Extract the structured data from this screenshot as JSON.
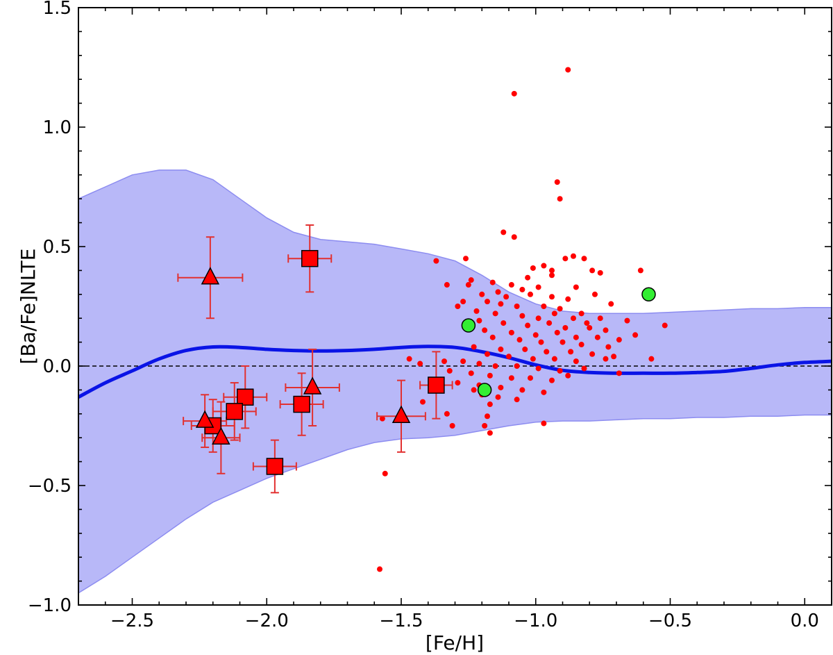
{
  "chart_data": {
    "type": "scatter",
    "title": "",
    "xlabel": "[Fe/H]",
    "ylabel": "[Ba/Fe]NLTE",
    "xlim": [
      -2.7,
      0.1
    ],
    "ylim": [
      -1.0,
      1.5
    ],
    "x_ticks": [
      -2.5,
      -2.0,
      -1.5,
      -1.0,
      -0.5,
      0.0
    ],
    "x_tick_labels": [
      "−2.5",
      "−2.0",
      "−1.5",
      "−1.0",
      "−0.5",
      "0.0"
    ],
    "y_ticks": [
      -1.0,
      -0.5,
      0.0,
      0.5,
      1.0,
      1.5
    ],
    "y_tick_labels": [
      "−1.0",
      "−0.5",
      "0.0",
      "0.5",
      "1.0",
      "1.5"
    ],
    "colors": {
      "band_fill": "#b8b8f8",
      "band_edge": "#8c8cf0",
      "mean_line": "#0a14e6",
      "marker_red": "#ff0000",
      "error_bar": "#e23030",
      "green_marker": "#33ee33"
    },
    "reference_line_y": 0.0,
    "band": {
      "name": "model spread",
      "x": [
        -2.7,
        -2.6,
        -2.5,
        -2.4,
        -2.3,
        -2.2,
        -2.1,
        -2.0,
        -1.9,
        -1.8,
        -1.7,
        -1.6,
        -1.5,
        -1.4,
        -1.3,
        -1.2,
        -1.1,
        -1.0,
        -0.9,
        -0.8,
        -0.7,
        -0.6,
        -0.5,
        -0.4,
        -0.3,
        -0.2,
        -0.1,
        0.0,
        0.1
      ],
      "upper": [
        0.7,
        0.75,
        0.8,
        0.82,
        0.82,
        0.78,
        0.7,
        0.62,
        0.56,
        0.53,
        0.52,
        0.51,
        0.49,
        0.47,
        0.44,
        0.38,
        0.31,
        0.26,
        0.23,
        0.22,
        0.22,
        0.22,
        0.225,
        0.23,
        0.235,
        0.24,
        0.24,
        0.245,
        0.245
      ],
      "lower": [
        -0.95,
        -0.88,
        -0.8,
        -0.72,
        -0.64,
        -0.57,
        -0.52,
        -0.47,
        -0.43,
        -0.39,
        -0.35,
        -0.32,
        -0.305,
        -0.3,
        -0.29,
        -0.27,
        -0.25,
        -0.235,
        -0.23,
        -0.23,
        -0.225,
        -0.22,
        -0.22,
        -0.215,
        -0.215,
        -0.21,
        -0.21,
        -0.205,
        -0.205
      ]
    },
    "mean_curve": {
      "name": "model mean",
      "x": [
        -2.7,
        -2.6,
        -2.5,
        -2.4,
        -2.3,
        -2.2,
        -2.1,
        -2.0,
        -1.9,
        -1.8,
        -1.7,
        -1.6,
        -1.5,
        -1.4,
        -1.3,
        -1.2,
        -1.1,
        -1.0,
        -0.9,
        -0.8,
        -0.7,
        -0.6,
        -0.5,
        -0.4,
        -0.3,
        -0.2,
        -0.1,
        0.0,
        0.1
      ],
      "y": [
        -0.13,
        -0.07,
        -0.02,
        0.03,
        0.065,
        0.08,
        0.078,
        0.07,
        0.065,
        0.063,
        0.065,
        0.07,
        0.078,
        0.082,
        0.078,
        0.06,
        0.035,
        0.005,
        -0.018,
        -0.027,
        -0.03,
        -0.03,
        -0.03,
        -0.027,
        -0.022,
        -0.01,
        0.005,
        0.015,
        0.02
      ]
    },
    "series": [
      {
        "name": "squares",
        "marker": "square",
        "points": [
          {
            "x": -1.84,
            "y": 0.45,
            "xerr": 0.08,
            "yerr": 0.14
          },
          {
            "x": -2.08,
            "y": -0.13,
            "xerr": 0.08,
            "yerr": 0.13
          },
          {
            "x": -2.12,
            "y": -0.19,
            "xerr": 0.08,
            "yerr": 0.12
          },
          {
            "x": -2.2,
            "y": -0.25,
            "xerr": 0.08,
            "yerr": 0.11
          },
          {
            "x": -1.97,
            "y": -0.42,
            "xerr": 0.08,
            "yerr": 0.11
          },
          {
            "x": -1.87,
            "y": -0.16,
            "xerr": 0.08,
            "yerr": 0.13
          },
          {
            "x": -1.37,
            "y": -0.08,
            "xerr": 0.06,
            "yerr": 0.14
          }
        ]
      },
      {
        "name": "triangles",
        "marker": "triangle",
        "points": [
          {
            "x": -2.21,
            "y": 0.37,
            "xerr": 0.12,
            "yerr": 0.17
          },
          {
            "x": -2.23,
            "y": -0.23,
            "xerr": 0.08,
            "yerr": 0.11
          },
          {
            "x": -2.17,
            "y": -0.3,
            "xerr": 0.07,
            "yerr": 0.15
          },
          {
            "x": -1.83,
            "y": -0.09,
            "xerr": 0.1,
            "yerr": 0.16
          },
          {
            "x": -1.5,
            "y": -0.21,
            "xerr": 0.09,
            "yerr": 0.15
          }
        ]
      },
      {
        "name": "green circles",
        "marker": "circle",
        "points": [
          {
            "x": -1.25,
            "y": 0.17
          },
          {
            "x": -1.19,
            "y": -0.1
          },
          {
            "x": -0.58,
            "y": 0.3
          }
        ]
      },
      {
        "name": "red dots",
        "marker": "dot",
        "points": [
          [
            -0.88,
            1.24
          ],
          [
            -1.08,
            1.14
          ],
          [
            -0.92,
            0.77
          ],
          [
            -0.91,
            0.7
          ],
          [
            -1.12,
            0.56
          ],
          [
            -1.08,
            0.54
          ],
          [
            -0.86,
            0.46
          ],
          [
            -0.82,
            0.45
          ],
          [
            -0.89,
            0.45
          ],
          [
            -0.97,
            0.42
          ],
          [
            -1.01,
            0.41
          ],
          [
            -0.79,
            0.4
          ],
          [
            -0.61,
            0.4
          ],
          [
            -1.37,
            0.44
          ],
          [
            -1.26,
            0.45
          ],
          [
            -0.76,
            0.39
          ],
          [
            -0.94,
            0.38
          ],
          [
            -1.03,
            0.37
          ],
          [
            -1.24,
            0.36
          ],
          [
            -1.25,
            0.34
          ],
          [
            -1.16,
            0.35
          ],
          [
            -1.33,
            0.34
          ],
          [
            -1.09,
            0.34
          ],
          [
            -0.99,
            0.33
          ],
          [
            -1.05,
            0.32
          ],
          [
            -0.85,
            0.33
          ],
          [
            -1.14,
            0.31
          ],
          [
            -1.2,
            0.3
          ],
          [
            -1.11,
            0.29
          ],
          [
            -1.02,
            0.3
          ],
          [
            -0.94,
            0.29
          ],
          [
            -0.78,
            0.3
          ],
          [
            -0.88,
            0.28
          ],
          [
            -1.18,
            0.27
          ],
          [
            -1.27,
            0.27
          ],
          [
            -1.29,
            0.25
          ],
          [
            -1.22,
            0.23
          ],
          [
            -1.13,
            0.26
          ],
          [
            -1.07,
            0.25
          ],
          [
            -0.97,
            0.25
          ],
          [
            -0.91,
            0.24
          ],
          [
            -0.83,
            0.22
          ],
          [
            -0.72,
            0.26
          ],
          [
            -1.15,
            0.22
          ],
          [
            -1.05,
            0.21
          ],
          [
            -0.99,
            0.2
          ],
          [
            -0.93,
            0.22
          ],
          [
            -0.86,
            0.2
          ],
          [
            -0.81,
            0.18
          ],
          [
            -0.76,
            0.2
          ],
          [
            -0.66,
            0.19
          ],
          [
            -1.21,
            0.19
          ],
          [
            -1.12,
            0.18
          ],
          [
            -1.03,
            0.17
          ],
          [
            -0.95,
            0.18
          ],
          [
            -0.89,
            0.16
          ],
          [
            -0.8,
            0.16
          ],
          [
            -0.74,
            0.15
          ],
          [
            -0.52,
            0.17
          ],
          [
            -1.19,
            0.15
          ],
          [
            -1.09,
            0.14
          ],
          [
            -1.0,
            0.13
          ],
          [
            -0.92,
            0.14
          ],
          [
            -0.85,
            0.12
          ],
          [
            -0.77,
            0.12
          ],
          [
            -0.69,
            0.11
          ],
          [
            -0.63,
            0.13
          ],
          [
            -1.16,
            0.12
          ],
          [
            -1.06,
            0.11
          ],
          [
            -0.98,
            0.1
          ],
          [
            -0.9,
            0.1
          ],
          [
            -0.83,
            0.09
          ],
          [
            -0.73,
            0.08
          ],
          [
            -1.23,
            0.08
          ],
          [
            -1.13,
            0.07
          ],
          [
            -1.04,
            0.07
          ],
          [
            -0.96,
            0.06
          ],
          [
            -0.87,
            0.06
          ],
          [
            -0.79,
            0.05
          ],
          [
            -0.71,
            0.04
          ],
          [
            -1.18,
            0.05
          ],
          [
            -1.1,
            0.04
          ],
          [
            -1.01,
            0.03
          ],
          [
            -0.93,
            0.03
          ],
          [
            -0.85,
            0.02
          ],
          [
            -0.74,
            0.03
          ],
          [
            -0.57,
            0.03
          ],
          [
            -1.47,
            0.03
          ],
          [
            -1.43,
            0.01
          ],
          [
            -1.34,
            0.02
          ],
          [
            -1.27,
            0.02
          ],
          [
            -1.21,
            0.01
          ],
          [
            -1.15,
            0.0
          ],
          [
            -1.07,
            0.0
          ],
          [
            -0.99,
            -0.01
          ],
          [
            -0.91,
            -0.02
          ],
          [
            -0.82,
            -0.01
          ],
          [
            -0.69,
            -0.03
          ],
          [
            -1.32,
            -0.02
          ],
          [
            -1.24,
            -0.03
          ],
          [
            -1.17,
            -0.04
          ],
          [
            -1.09,
            -0.05
          ],
          [
            -1.02,
            -0.05
          ],
          [
            -0.94,
            -0.06
          ],
          [
            -0.88,
            -0.04
          ],
          [
            -1.29,
            -0.07
          ],
          [
            -1.21,
            -0.08
          ],
          [
            -1.13,
            -0.09
          ],
          [
            -1.05,
            -0.1
          ],
          [
            -0.97,
            -0.11
          ],
          [
            -1.2,
            -0.12
          ],
          [
            -1.14,
            -0.13
          ],
          [
            -1.07,
            -0.14
          ],
          [
            -1.23,
            -0.1
          ],
          [
            -1.17,
            -0.16
          ],
          [
            -1.42,
            -0.15
          ],
          [
            -1.33,
            -0.2
          ],
          [
            -1.18,
            -0.21
          ],
          [
            -1.31,
            -0.25
          ],
          [
            -1.19,
            -0.25
          ],
          [
            -0.97,
            -0.24
          ],
          [
            -1.17,
            -0.28
          ],
          [
            -1.57,
            -0.22
          ],
          [
            -1.56,
            -0.45
          ],
          [
            -1.58,
            -0.85
          ],
          [
            -0.94,
            0.4
          ]
        ]
      }
    ]
  }
}
